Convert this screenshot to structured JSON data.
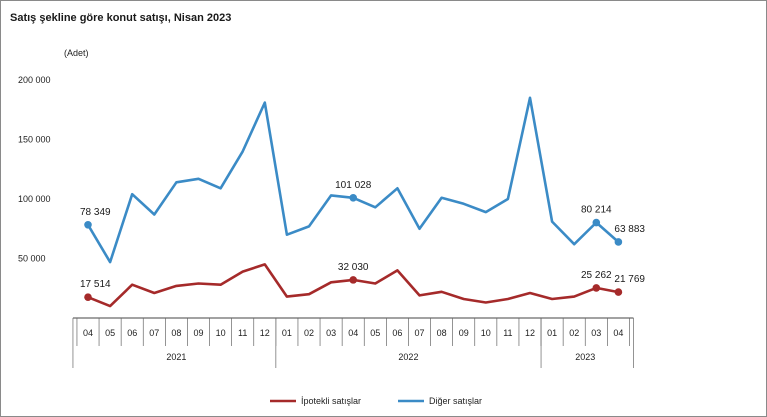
{
  "title": "Satış şekline göre konut satışı, Nisan 2023",
  "unit_label": "(Adet)",
  "legend": [
    {
      "name": "İpotekli satışlar",
      "color": "#a52a2a"
    },
    {
      "name": "Diğer satışlar",
      "color": "#3b8bc6"
    }
  ],
  "chart_data": {
    "type": "line",
    "title": "Satış şekline göre konut satışı, Nisan 2023",
    "ylabel": "(Adet)",
    "ylim": [
      0,
      200000
    ],
    "y_ticks": [
      {
        "value": 50000,
        "label": "50 000"
      },
      {
        "value": 100000,
        "label": "100 000"
      },
      {
        "value": 150000,
        "label": "150 000"
      },
      {
        "value": 200000,
        "label": "200 000"
      }
    ],
    "categories": [
      "04",
      "05",
      "06",
      "07",
      "08",
      "09",
      "10",
      "11",
      "12",
      "01",
      "02",
      "03",
      "04",
      "05",
      "06",
      "07",
      "08",
      "09",
      "10",
      "11",
      "12",
      "01",
      "02",
      "03",
      "04"
    ],
    "years": [
      {
        "label": "2021",
        "start": 0,
        "end": 8
      },
      {
        "label": "2022",
        "start": 9,
        "end": 20
      },
      {
        "label": "2023",
        "start": 21,
        "end": 24
      }
    ],
    "legend_position": "bottom",
    "grid": false,
    "series": [
      {
        "name": "İpotekli satışlar",
        "color": "#a52a2a",
        "values": [
          17514,
          10000,
          28000,
          21000,
          27000,
          29000,
          28000,
          39000,
          45000,
          18000,
          20000,
          30000,
          32030,
          29000,
          40000,
          19000,
          22000,
          16000,
          13000,
          16000,
          21000,
          16000,
          18000,
          25262,
          21769
        ],
        "labels": [
          {
            "index": 0,
            "text": "17 514"
          },
          {
            "index": 12,
            "text": "32 030"
          },
          {
            "index": 23,
            "text": "25 262"
          },
          {
            "index": 24,
            "text": "21 769"
          }
        ]
      },
      {
        "name": "Diğer satışlar",
        "color": "#3b8bc6",
        "values": [
          78349,
          47000,
          104000,
          87000,
          114000,
          117000,
          109000,
          140000,
          181000,
          70000,
          77000,
          103000,
          101028,
          93000,
          109000,
          75000,
          101000,
          96000,
          89000,
          100000,
          185000,
          81000,
          62000,
          80214,
          63883
        ],
        "labels": [
          {
            "index": 0,
            "text": "78 349"
          },
          {
            "index": 12,
            "text": "101 028"
          },
          {
            "index": 23,
            "text": "80 214"
          },
          {
            "index": 24,
            "text": "63 883"
          }
        ]
      }
    ]
  }
}
